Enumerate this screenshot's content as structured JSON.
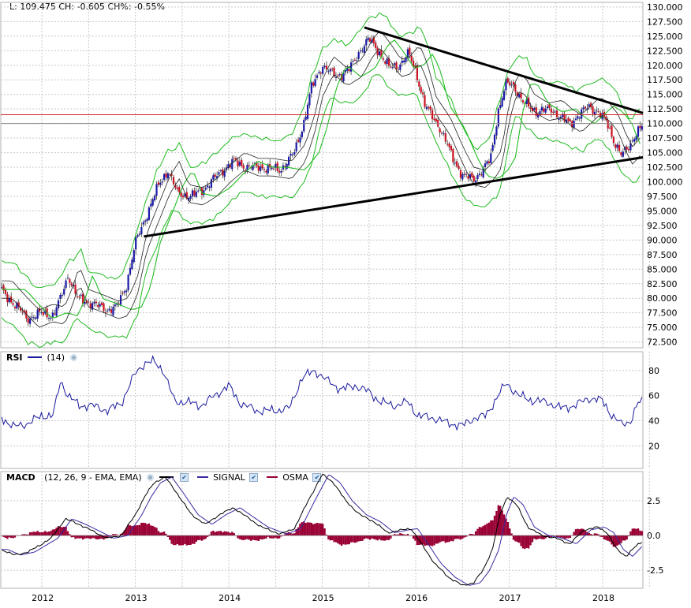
{
  "header": {
    "price_readout": "L: 109.475 CH: -0.605 CH%: -0.55%"
  },
  "rsi": {
    "label": "RSI",
    "param": "(14)"
  },
  "macd": {
    "label": "MACD",
    "param": "(12, 26, 9 - EMA, EMA)",
    "signal_label": "SIGNAL",
    "osma_label": "OSMA"
  },
  "colors": {
    "candle_up": "#1a1aa8",
    "candle_down": "#cc1122",
    "bollinger": "#22bb22",
    "moving_average": "#222222",
    "trendline": "#000000",
    "price_line": "#cc2222",
    "rsi_line": "#1a1a9c",
    "macd_line": "#000000",
    "signal_line": "#3a2aa0",
    "osma_bars": "#990033",
    "grid": "#c8c8c8"
  },
  "chart_data": [
    {
      "type": "candlestick",
      "name": "price",
      "x_labels": [
        "2012",
        "2013",
        "2014",
        "2015",
        "2016",
        "2017",
        "2018"
      ],
      "x_range": [
        2011.56,
        2018.43
      ],
      "y_ticks": [
        "130.000",
        "127.500",
        "125.000",
        "122.500",
        "120.000",
        "117.500",
        "115.000",
        "112.500",
        "110.000",
        "107.500",
        "105.000",
        "102.500",
        "100.000",
        "97.500",
        "95.000",
        "92.500",
        "90.000",
        "87.500",
        "85.000",
        "82.500",
        "80.000",
        "77.500",
        "75.000",
        "72.500"
      ],
      "ylim": [
        71.5,
        130.8
      ],
      "last_price": 109.475,
      "reference_lines": [
        111.5,
        110.0
      ],
      "close_anchors": [
        [
          2011.56,
          81.5
        ],
        [
          2011.7,
          79.0
        ],
        [
          2011.85,
          76.5
        ],
        [
          2012.0,
          77.5
        ],
        [
          2012.12,
          77.0
        ],
        [
          2012.2,
          80.0
        ],
        [
          2012.28,
          84.0
        ],
        [
          2012.38,
          80.0
        ],
        [
          2012.55,
          79.0
        ],
        [
          2012.7,
          78.0
        ],
        [
          2012.8,
          78.5
        ],
        [
          2012.9,
          82.0
        ],
        [
          2013.0,
          89.5
        ],
        [
          2013.1,
          93.5
        ],
        [
          2013.25,
          99.5
        ],
        [
          2013.35,
          102.0
        ],
        [
          2013.45,
          98.0
        ],
        [
          2013.6,
          97.5
        ],
        [
          2013.75,
          99.0
        ],
        [
          2013.9,
          101.5
        ],
        [
          2014.05,
          103.5
        ],
        [
          2014.2,
          102.5
        ],
        [
          2014.35,
          102.5
        ],
        [
          2014.55,
          102.0
        ],
        [
          2014.7,
          105.0
        ],
        [
          2014.8,
          110.0
        ],
        [
          2014.88,
          116.0
        ],
        [
          2015.0,
          120.0
        ],
        [
          2015.15,
          118.0
        ],
        [
          2015.3,
          119.5
        ],
        [
          2015.42,
          123.0
        ],
        [
          2015.5,
          124.5
        ],
        [
          2015.62,
          122.0
        ],
        [
          2015.72,
          119.5
        ],
        [
          2015.82,
          120.0
        ],
        [
          2015.92,
          122.0
        ],
        [
          2016.0,
          119.0
        ],
        [
          2016.1,
          113.0
        ],
        [
          2016.25,
          109.5
        ],
        [
          2016.4,
          104.0
        ],
        [
          2016.5,
          101.0
        ],
        [
          2016.62,
          100.5
        ],
        [
          2016.72,
          102.0
        ],
        [
          2016.8,
          104.0
        ],
        [
          2016.88,
          112.0
        ],
        [
          2016.97,
          117.0
        ],
        [
          2017.05,
          116.5
        ],
        [
          2017.15,
          113.5
        ],
        [
          2017.3,
          112.0
        ],
        [
          2017.45,
          112.5
        ],
        [
          2017.55,
          111.0
        ],
        [
          2017.65,
          110.0
        ],
        [
          2017.75,
          111.5
        ],
        [
          2017.85,
          113.0
        ],
        [
          2017.95,
          112.0
        ],
        [
          2018.05,
          110.0
        ],
        [
          2018.12,
          107.0
        ],
        [
          2018.2,
          104.5
        ],
        [
          2018.28,
          106.0
        ],
        [
          2018.36,
          108.5
        ],
        [
          2018.43,
          109.5
        ]
      ],
      "trendlines": [
        {
          "from": [
            2015.45,
            126.5
          ],
          "to": [
            2018.43,
            111.8
          ]
        },
        {
          "from": [
            2013.09,
            90.6
          ],
          "to": [
            2018.43,
            104.2
          ]
        }
      ],
      "bollinger_width": 4.5,
      "moving_average_lag": 0.12
    },
    {
      "type": "line",
      "name": "RSI",
      "y_ticks": [
        "80",
        "60",
        "40",
        "20"
      ],
      "ylim": [
        2,
        95
      ],
      "anchors": [
        [
          2011.56,
          43
        ],
        [
          2011.7,
          35
        ],
        [
          2011.85,
          38
        ],
        [
          2012.0,
          44
        ],
        [
          2012.12,
          44
        ],
        [
          2012.2,
          72
        ],
        [
          2012.28,
          60
        ],
        [
          2012.4,
          52
        ],
        [
          2012.55,
          52
        ],
        [
          2012.7,
          48
        ],
        [
          2012.85,
          54
        ],
        [
          2013.0,
          78
        ],
        [
          2013.1,
          86
        ],
        [
          2013.2,
          87
        ],
        [
          2013.3,
          80
        ],
        [
          2013.42,
          55
        ],
        [
          2013.55,
          55
        ],
        [
          2013.7,
          52
        ],
        [
          2013.85,
          60
        ],
        [
          2014.0,
          68
        ],
        [
          2014.12,
          54
        ],
        [
          2014.3,
          48
        ],
        [
          2014.5,
          48
        ],
        [
          2014.65,
          50
        ],
        [
          2014.78,
          74
        ],
        [
          2014.92,
          80
        ],
        [
          2015.05,
          72
        ],
        [
          2015.2,
          65
        ],
        [
          2015.35,
          68
        ],
        [
          2015.5,
          63
        ],
        [
          2015.62,
          55
        ],
        [
          2015.78,
          52
        ],
        [
          2015.92,
          55
        ],
        [
          2016.02,
          44
        ],
        [
          2016.2,
          42
        ],
        [
          2016.35,
          38
        ],
        [
          2016.5,
          36
        ],
        [
          2016.62,
          42
        ],
        [
          2016.75,
          44
        ],
        [
          2016.88,
          60
        ],
        [
          2016.97,
          70
        ],
        [
          2017.1,
          60
        ],
        [
          2017.25,
          56
        ],
        [
          2017.4,
          55
        ],
        [
          2017.55,
          50
        ],
        [
          2017.7,
          52
        ],
        [
          2017.85,
          58
        ],
        [
          2018.0,
          56
        ],
        [
          2018.1,
          44
        ],
        [
          2018.2,
          37
        ],
        [
          2018.3,
          40
        ],
        [
          2018.38,
          54
        ],
        [
          2018.43,
          55
        ]
      ]
    },
    {
      "type": "line",
      "name": "MACD",
      "y_ticks": [
        "2.5",
        "0.0",
        "-2.5"
      ],
      "ylim": [
        -3.8,
        4.6
      ],
      "anchors": [
        [
          2011.56,
          -1.0
        ],
        [
          2011.7,
          -1.4
        ],
        [
          2011.85,
          -1.2
        ],
        [
          2012.0,
          -0.6
        ],
        [
          2012.1,
          -0.2
        ],
        [
          2012.25,
          1.2
        ],
        [
          2012.4,
          0.8
        ],
        [
          2012.55,
          0.3
        ],
        [
          2012.7,
          -0.2
        ],
        [
          2012.85,
          0.0
        ],
        [
          2013.0,
          1.5
        ],
        [
          2013.1,
          2.8
        ],
        [
          2013.2,
          3.8
        ],
        [
          2013.32,
          4.2
        ],
        [
          2013.45,
          3.0
        ],
        [
          2013.6,
          1.5
        ],
        [
          2013.75,
          0.8
        ],
        [
          2013.9,
          1.5
        ],
        [
          2014.05,
          2.0
        ],
        [
          2014.2,
          1.3
        ],
        [
          2014.35,
          0.6
        ],
        [
          2014.55,
          0.1
        ],
        [
          2014.7,
          0.5
        ],
        [
          2014.85,
          2.5
        ],
        [
          2015.0,
          4.4
        ],
        [
          2015.12,
          3.8
        ],
        [
          2015.25,
          2.5
        ],
        [
          2015.4,
          1.5
        ],
        [
          2015.55,
          1.0
        ],
        [
          2015.7,
          0.2
        ],
        [
          2015.85,
          0.4
        ],
        [
          2015.95,
          0.5
        ],
        [
          2016.05,
          -0.5
        ],
        [
          2016.2,
          -2.0
        ],
        [
          2016.35,
          -3.0
        ],
        [
          2016.5,
          -3.6
        ],
        [
          2016.62,
          -3.4
        ],
        [
          2016.72,
          -2.5
        ],
        [
          2016.82,
          -1.0
        ],
        [
          2016.9,
          1.5
        ],
        [
          2016.98,
          2.8
        ],
        [
          2017.08,
          2.2
        ],
        [
          2017.2,
          0.6
        ],
        [
          2017.35,
          0.0
        ],
        [
          2017.5,
          -0.2
        ],
        [
          2017.65,
          -0.6
        ],
        [
          2017.8,
          0.4
        ],
        [
          2017.95,
          0.6
        ],
        [
          2018.05,
          0.2
        ],
        [
          2018.15,
          -1.0
        ],
        [
          2018.25,
          -1.5
        ],
        [
          2018.35,
          -0.8
        ],
        [
          2018.43,
          -0.4
        ]
      ]
    }
  ]
}
